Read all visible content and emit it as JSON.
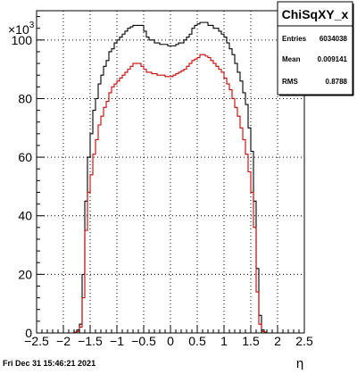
{
  "chart_data": {
    "type": "step-histogram",
    "title": "ChiSqXY_x",
    "xlabel": "η",
    "ylabel": "",
    "y_exponent_label": "×10",
    "y_exponent_power": "3",
    "xlim": [
      -2.5,
      2.5
    ],
    "ylim": [
      0,
      110
    ],
    "x_ticks": [
      -2.5,
      -2,
      -1.5,
      -1,
      -0.5,
      0,
      0.5,
      1,
      1.5,
      2,
      2.5
    ],
    "x_tick_labels": [
      "−2.5",
      "−2",
      "−1.5",
      "−1",
      "−0.5",
      "0",
      "0.5",
      "1",
      "1.5",
      "2",
      "2.5"
    ],
    "y_ticks": [
      0,
      20,
      40,
      60,
      80,
      100
    ],
    "y_tick_labels": [
      "0",
      "20",
      "40",
      "60",
      "80",
      "100"
    ],
    "grid": true,
    "stats": {
      "title": "ChiSqXY_x",
      "rows": [
        {
          "label": "Entries",
          "value": "6034038"
        },
        {
          "label": "Mean",
          "value": "0.009141"
        },
        {
          "label": "RMS",
          "value": "0.8788"
        }
      ]
    },
    "timestamp": "Fri Dec 31 15:46:21 2021",
    "series": [
      {
        "color": "#000000",
        "x": [
          -2.5,
          -2.4,
          -2.3,
          -2.2,
          -2.1,
          -2.0,
          -1.9,
          -1.8,
          -1.75,
          -1.7,
          -1.65,
          -1.6,
          -1.55,
          -1.5,
          -1.45,
          -1.4,
          -1.35,
          -1.3,
          -1.25,
          -1.2,
          -1.15,
          -1.1,
          -1.05,
          -1.0,
          -0.95,
          -0.9,
          -0.85,
          -0.8,
          -0.75,
          -0.7,
          -0.65,
          -0.6,
          -0.55,
          -0.5,
          -0.45,
          -0.4,
          -0.35,
          -0.3,
          -0.25,
          -0.2,
          -0.15,
          -0.1,
          -0.05,
          0.0,
          0.05,
          0.1,
          0.15,
          0.2,
          0.25,
          0.3,
          0.35,
          0.4,
          0.45,
          0.5,
          0.55,
          0.6,
          0.65,
          0.7,
          0.75,
          0.8,
          0.85,
          0.9,
          0.95,
          1.0,
          1.05,
          1.1,
          1.15,
          1.2,
          1.25,
          1.3,
          1.35,
          1.4,
          1.45,
          1.5,
          1.55,
          1.6,
          1.65,
          1.7,
          1.75,
          1.8,
          1.9,
          2.0,
          2.1,
          2.2,
          2.3,
          2.4,
          2.5
        ],
        "y": [
          0,
          0,
          0,
          0,
          0,
          0,
          0,
          0.3,
          1,
          3,
          20,
          45,
          60,
          68,
          76,
          80,
          85,
          88,
          91,
          93,
          96,
          97,
          99,
          100,
          101,
          102,
          103,
          104,
          104.5,
          105,
          105,
          105,
          105,
          103,
          101,
          100,
          100,
          99,
          99,
          98.5,
          98.5,
          98.5,
          98,
          98,
          98,
          98.5,
          99,
          99,
          100,
          101,
          102,
          104,
          105,
          105.5,
          106,
          106,
          106,
          105,
          105,
          104,
          104,
          103,
          102,
          101,
          99,
          97,
          95,
          92,
          89,
          86,
          82,
          78,
          70,
          62,
          45,
          22,
          6,
          1,
          0.3,
          0,
          0,
          0,
          0,
          0,
          0,
          0,
          0
        ]
      },
      {
        "color": "#cc0000",
        "x": [
          -2.5,
          -2.4,
          -2.3,
          -2.2,
          -2.1,
          -2.0,
          -1.9,
          -1.8,
          -1.75,
          -1.7,
          -1.65,
          -1.6,
          -1.55,
          -1.5,
          -1.45,
          -1.4,
          -1.35,
          -1.3,
          -1.25,
          -1.2,
          -1.15,
          -1.1,
          -1.05,
          -1.0,
          -0.95,
          -0.9,
          -0.85,
          -0.8,
          -0.75,
          -0.7,
          -0.65,
          -0.6,
          -0.55,
          -0.5,
          -0.45,
          -0.4,
          -0.35,
          -0.3,
          -0.25,
          -0.2,
          -0.15,
          -0.1,
          -0.05,
          0.0,
          0.05,
          0.1,
          0.15,
          0.2,
          0.25,
          0.3,
          0.35,
          0.4,
          0.45,
          0.5,
          0.55,
          0.6,
          0.65,
          0.7,
          0.75,
          0.8,
          0.85,
          0.9,
          0.95,
          1.0,
          1.05,
          1.1,
          1.15,
          1.2,
          1.25,
          1.3,
          1.35,
          1.4,
          1.45,
          1.5,
          1.55,
          1.6,
          1.65,
          1.7,
          1.75,
          1.8,
          1.9,
          2.0,
          2.1,
          2.2,
          2.3,
          2.4,
          2.5
        ],
        "y": [
          0,
          0,
          0,
          0,
          0,
          0,
          0,
          0.2,
          0.5,
          2,
          12,
          35,
          48,
          54,
          61,
          66,
          71,
          74,
          77,
          79,
          82,
          84,
          85,
          86,
          87,
          88,
          89,
          90,
          91,
          92,
          92,
          92,
          91,
          90,
          89,
          89,
          88.5,
          88.5,
          88,
          88,
          88,
          87.5,
          87.5,
          87.5,
          88,
          88.5,
          89,
          89.5,
          90,
          91,
          92,
          93,
          93.5,
          94,
          95,
          95,
          94.5,
          94,
          93,
          92,
          91,
          90,
          89,
          87,
          85,
          83,
          80,
          77,
          74,
          70,
          66,
          61,
          55,
          48,
          36,
          14,
          3,
          0.5,
          0.2,
          0,
          0,
          0,
          0,
          0,
          0,
          0,
          0
        ]
      }
    ]
  }
}
